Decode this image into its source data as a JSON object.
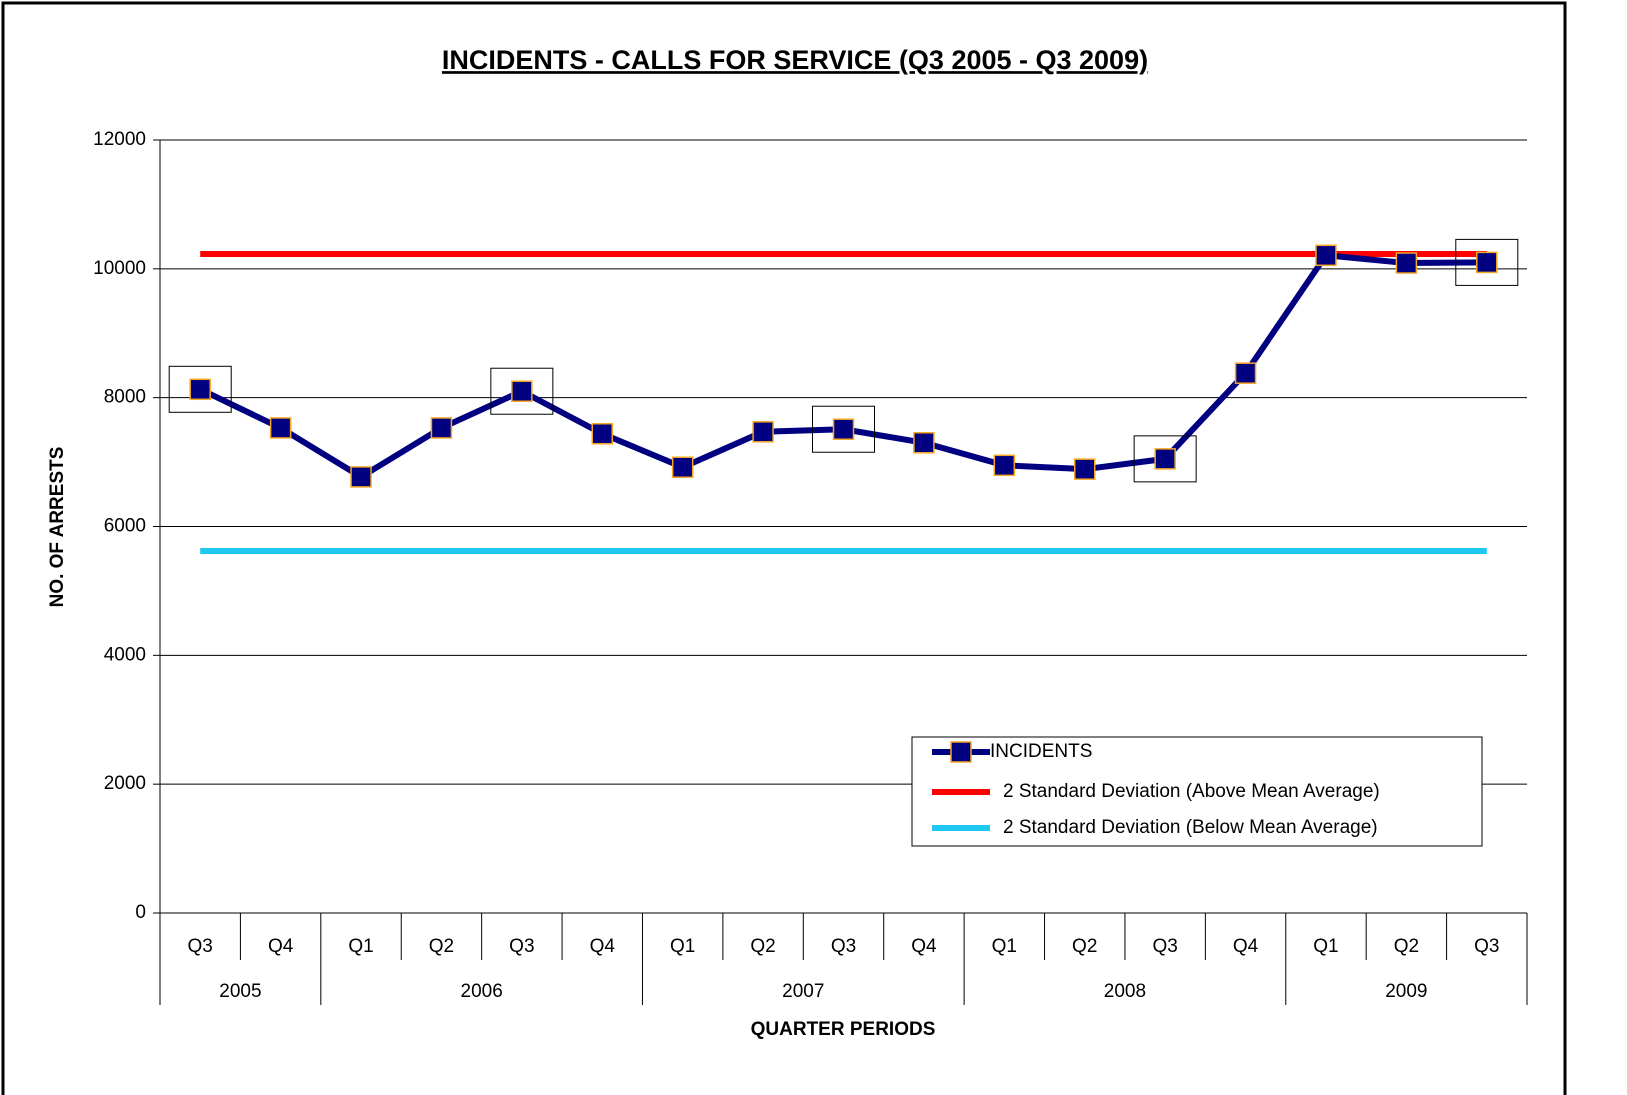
{
  "chart_data": {
    "type": "line",
    "title": "INCIDENTS - CALLS FOR SERVICE (Q3 2005 - Q3 2009)",
    "y_label": "NO. OF ARRESTS",
    "x_label": "QUARTER PERIODS",
    "category_groups": [
      {
        "name": "2005",
        "categories": [
          "Q3",
          "Q4"
        ]
      },
      {
        "name": "2006",
        "categories": [
          "Q1",
          "Q2",
          "Q3",
          "Q4"
        ]
      },
      {
        "name": "2007",
        "categories": [
          "Q1",
          "Q2",
          "Q3",
          "Q4"
        ]
      },
      {
        "name": "2008",
        "categories": [
          "Q1",
          "Q2",
          "Q3",
          "Q4"
        ]
      },
      {
        "name": "2009",
        "categories": [
          "Q1",
          "Q2",
          "Q3"
        ]
      }
    ],
    "series": [
      {
        "name": "INCIDENTS",
        "color": "#000080",
        "marker_edge": "#f5a623",
        "values": [
          8130,
          7530,
          6770,
          7530,
          8100,
          7440,
          6920,
          7470,
          7510,
          7300,
          6950,
          6890,
          7050,
          8380,
          10210,
          10090,
          10100
        ]
      },
      {
        "name": "2 Standard Deviation (Above Mean Average)",
        "color": "#ff0000",
        "values": [
          10230,
          10230,
          10230,
          10230,
          10230,
          10230,
          10230,
          10230,
          10230,
          10230,
          10230,
          10230,
          10230,
          10230,
          10230,
          10230,
          10230
        ]
      },
      {
        "name": "2 Standard Deviation (Below Mean Average)",
        "color": "#1ec8f0",
        "values": [
          5620,
          5620,
          5620,
          5620,
          5620,
          5620,
          5620,
          5620,
          5620,
          5620,
          5620,
          5620,
          5620,
          5620,
          5620,
          5620,
          5620
        ]
      }
    ],
    "highlight_points": [
      0,
      4,
      8,
      12,
      16
    ],
    "ylim": [
      0,
      12000
    ],
    "yticks": [
      0,
      2000,
      4000,
      6000,
      8000,
      10000,
      12000
    ],
    "grid": true,
    "legend": "lower right"
  }
}
